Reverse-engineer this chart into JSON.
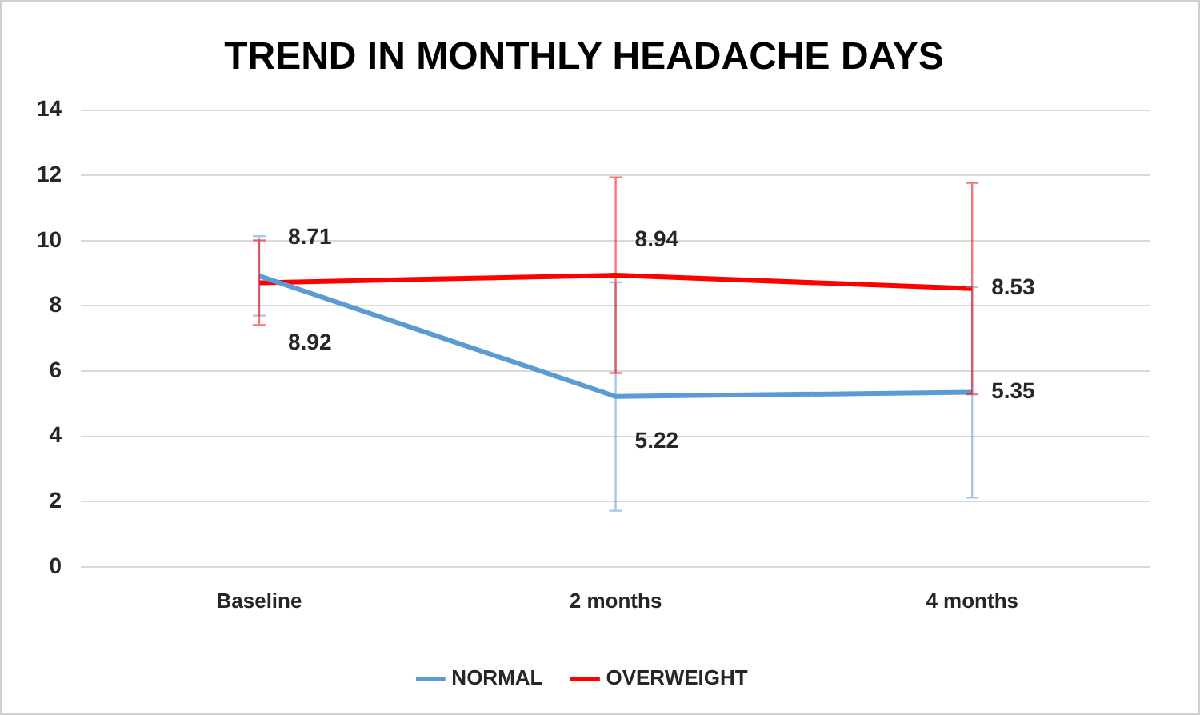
{
  "chart_data": {
    "type": "line",
    "title": "TREND IN MONTHLY HEADACHE DAYS",
    "categories": [
      "Baseline",
      "2 months",
      "4 months"
    ],
    "series": [
      {
        "name": "NORMAL",
        "color": "#5b9bd5",
        "values": [
          8.92,
          5.22,
          5.35
        ],
        "errors": [
          1.22,
          3.5,
          3.23
        ]
      },
      {
        "name": "OVERWEIGHT",
        "color": "#ff0000",
        "values": [
          8.71,
          8.94,
          8.53
        ],
        "errors": [
          1.3,
          3.0,
          3.24
        ]
      }
    ],
    "ylim": [
      0,
      14
    ],
    "yticks": [
      0,
      2,
      4,
      6,
      8,
      10,
      12,
      14
    ],
    "grid": "y",
    "legend": "bottom",
    "marker": "none",
    "line_style": "solid",
    "data_labels": true
  }
}
